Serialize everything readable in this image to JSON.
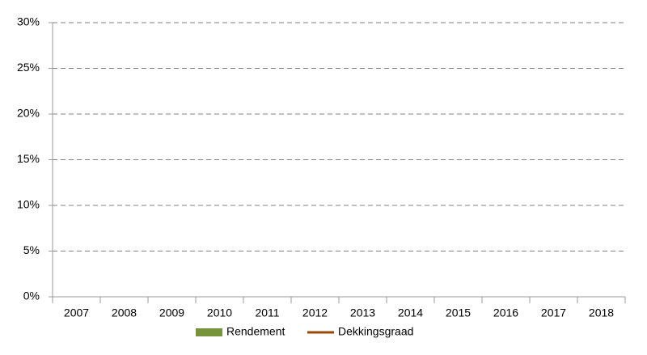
{
  "chart_data": {
    "type": "bar_line",
    "categories": [
      "2007",
      "2008",
      "2009",
      "2010",
      "2011",
      "2012",
      "2013",
      "2014",
      "2015",
      "2016",
      "2017",
      "2018"
    ],
    "series": [
      {
        "name": "Rendement",
        "type": "bar",
        "color": "#77933c",
        "values": [
          null,
          null,
          null,
          null,
          null,
          null,
          null,
          null,
          null,
          null,
          null,
          null
        ]
      },
      {
        "name": "Dekkingsgraad",
        "type": "line",
        "color": "#984807",
        "values": [
          null,
          null,
          null,
          null,
          null,
          null,
          null,
          null,
          null,
          null,
          null,
          null
        ]
      }
    ],
    "ylim": [
      0,
      0.3
    ],
    "yticks": [
      {
        "value": 0,
        "label": "0%"
      },
      {
        "value": 0.05,
        "label": "5%"
      },
      {
        "value": 0.1,
        "label": "10%"
      },
      {
        "value": 0.15,
        "label": "15%"
      },
      {
        "value": 0.2,
        "label": "20%"
      },
      {
        "value": 0.25,
        "label": "25%"
      },
      {
        "value": 0.3,
        "label": "30%"
      }
    ],
    "grid": true,
    "legend": "bottom"
  }
}
